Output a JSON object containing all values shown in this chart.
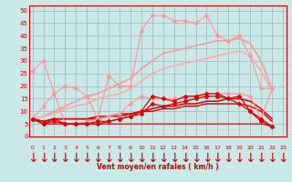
{
  "bg_color": "#cbe8e8",
  "grid_color": "#a0c0c0",
  "xlabel": "Vent moyen/en rafales ( km/h )",
  "xlabel_color": "#cc0000",
  "x_ticks": [
    0,
    1,
    2,
    3,
    4,
    5,
    6,
    7,
    8,
    9,
    10,
    11,
    12,
    13,
    14,
    15,
    16,
    17,
    18,
    19,
    20,
    21,
    22,
    23
  ],
  "y_ticks": [
    0,
    5,
    10,
    15,
    20,
    25,
    30,
    35,
    40,
    45,
    50
  ],
  "ylim": [
    0,
    52
  ],
  "xlim": [
    -0.3,
    23.3
  ],
  "lines": [
    {
      "name": "pink_upper_jagged",
      "color": "#ff9999",
      "lw": 0.9,
      "marker": "D",
      "markersize": 2.0,
      "values": [
        26,
        30,
        17,
        20,
        19,
        16,
        7,
        24,
        20,
        20,
        42,
        48,
        48,
        46,
        46,
        45,
        48,
        40,
        38,
        40,
        32,
        19,
        19
      ]
    },
    {
      "name": "pink_mid_jagged",
      "color": "#ff9999",
      "lw": 0.9,
      "marker": "D",
      "markersize": 2.0,
      "values": [
        7,
        12,
        17,
        5,
        5,
        6,
        7,
        8,
        9,
        13,
        16,
        15,
        15,
        15,
        15,
        16,
        17,
        17,
        17,
        17,
        16,
        7,
        19
      ]
    },
    {
      "name": "pink_smooth_upper",
      "color": "#ff9999",
      "lw": 1.2,
      "marker": null,
      "markersize": 0,
      "values": [
        7,
        8,
        10,
        12,
        14,
        16,
        17,
        19,
        21,
        23,
        27,
        30,
        33,
        34,
        35,
        36,
        37,
        38,
        38,
        39,
        37,
        30,
        19
      ]
    },
    {
      "name": "pink_smooth_lower",
      "color": "#ffaaaa",
      "lw": 1.2,
      "marker": null,
      "markersize": 0,
      "values": [
        7,
        8,
        9,
        11,
        12,
        13,
        15,
        16,
        17,
        19,
        22,
        25,
        27,
        28,
        29,
        30,
        31,
        32,
        33,
        34,
        32,
        26,
        18
      ]
    },
    {
      "name": "dark_red_jagged1",
      "color": "#dd0000",
      "lw": 0.9,
      "marker": "D",
      "markersize": 2.0,
      "values": [
        7,
        5,
        6,
        5,
        5,
        5,
        6,
        6,
        7,
        8,
        10,
        16,
        15,
        14,
        16,
        16,
        17,
        17,
        15,
        16,
        10,
        6,
        4
      ]
    },
    {
      "name": "dark_red_jagged2",
      "color": "#dd0000",
      "lw": 0.9,
      "marker": "D",
      "markersize": 2.0,
      "values": [
        7,
        5,
        7,
        5,
        5,
        5,
        5,
        6,
        7,
        8,
        9,
        13,
        12,
        13,
        14,
        15,
        16,
        16,
        15,
        13,
        10,
        7,
        4
      ]
    },
    {
      "name": "dark_smooth1",
      "color": "#dd0000",
      "lw": 1.1,
      "marker": null,
      "markersize": 0,
      "values": [
        7,
        6,
        7,
        7,
        7,
        7,
        8,
        8,
        9,
        9,
        10,
        11,
        12,
        12,
        13,
        13,
        14,
        14,
        15,
        15,
        14,
        11,
        7
      ]
    },
    {
      "name": "dark_smooth2",
      "color": "#dd0000",
      "lw": 1.0,
      "marker": null,
      "markersize": 0,
      "values": [
        7,
        6,
        7,
        7,
        7,
        7,
        7,
        8,
        8,
        9,
        10,
        10,
        11,
        11,
        12,
        12,
        13,
        13,
        13,
        13,
        12,
        10,
        6
      ]
    },
    {
      "name": "dark_flat",
      "color": "#cc0000",
      "lw": 0.8,
      "marker": null,
      "markersize": 0,
      "values": [
        7,
        5,
        5,
        5,
        5,
        5,
        5,
        5,
        5,
        5,
        5,
        5,
        5,
        5,
        5,
        5,
        5,
        5,
        5,
        5,
        5,
        5,
        4
      ]
    }
  ],
  "arrow_char": "↓",
  "arrow_color": "#cc0000",
  "arrow_fontsize": 5.5
}
